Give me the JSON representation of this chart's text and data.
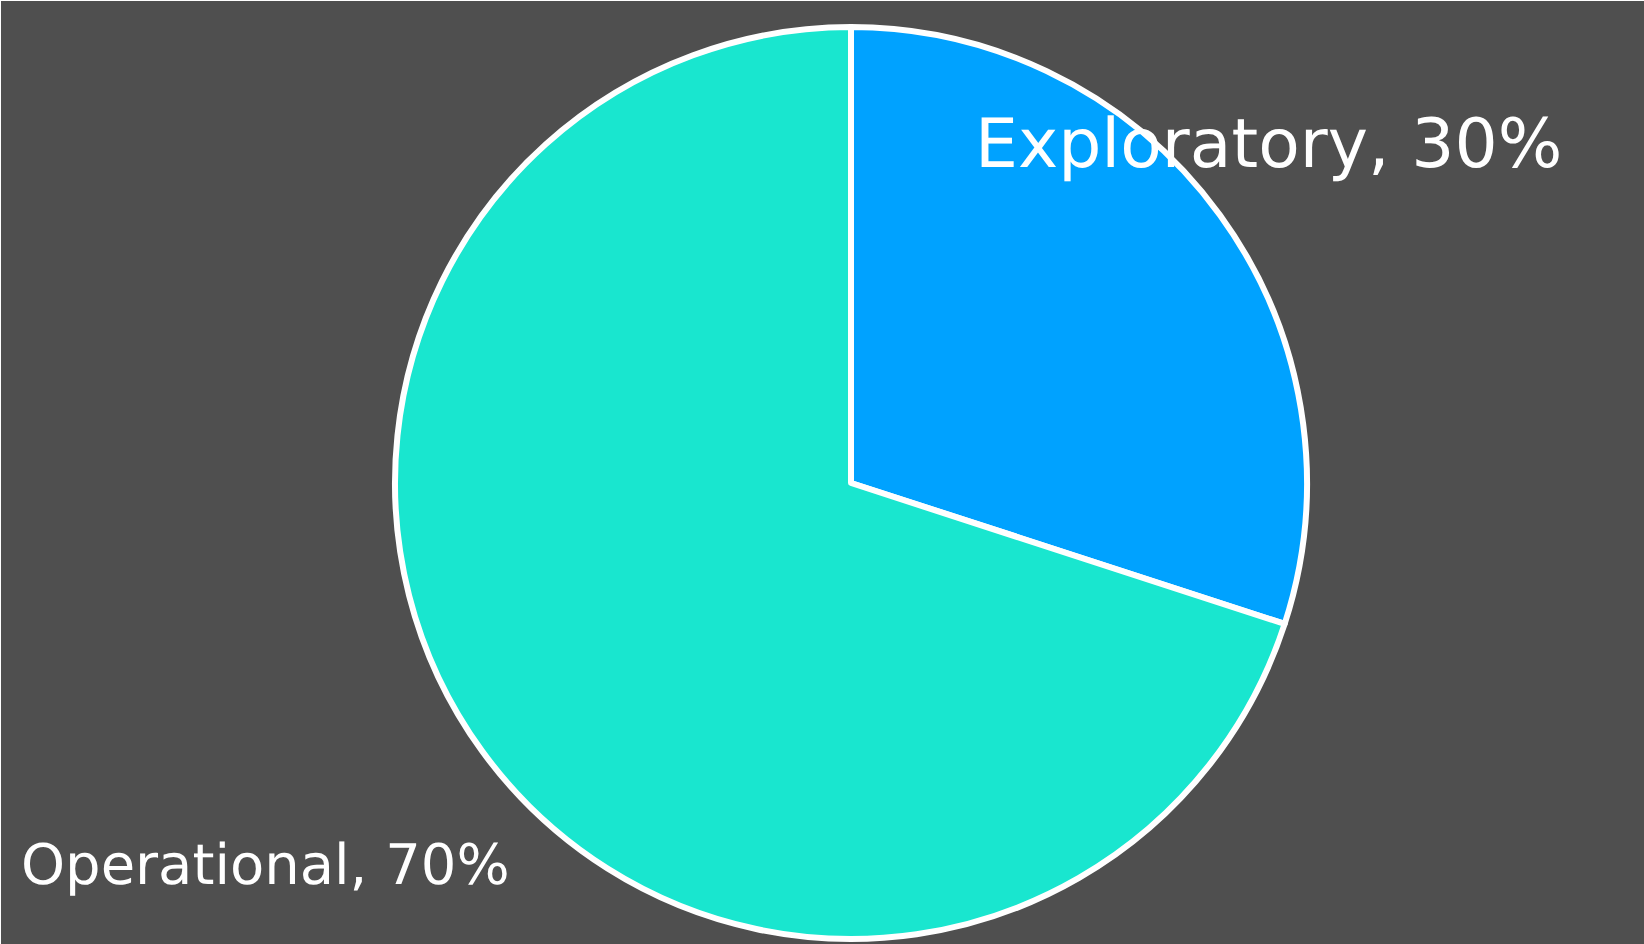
{
  "chart_data": {
    "type": "pie",
    "categories": [
      "Exploratory",
      "Operational"
    ],
    "values": [
      30,
      70
    ],
    "colors": [
      "#00a2ff",
      "#19e6cf"
    ],
    "value_labels": [
      "30%",
      "70%"
    ]
  }
}
